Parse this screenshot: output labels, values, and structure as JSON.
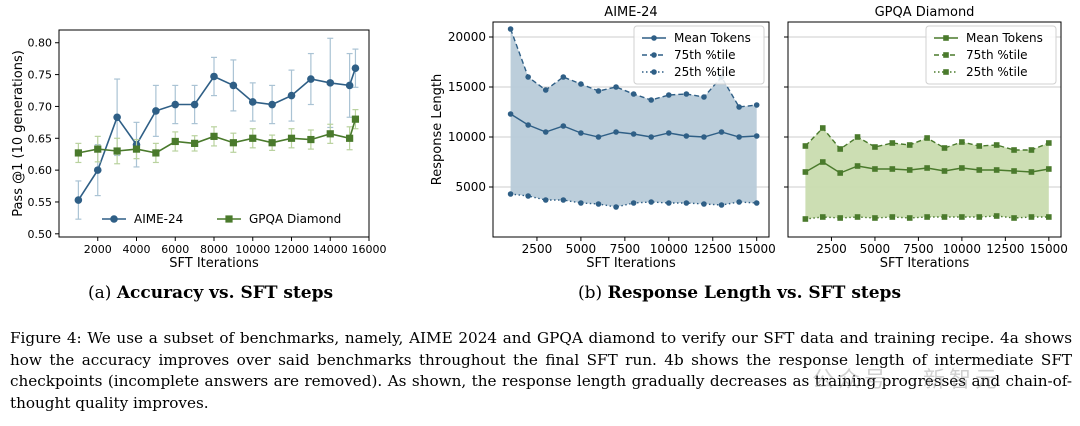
{
  "captions": {
    "a_prefix": "(a) ",
    "a_title": "Accuracy vs. SFT steps",
    "b_prefix": "(b) ",
    "b_title": "Response Length vs. SFT steps"
  },
  "figure_caption": "Figure 4: We use a subset of benchmarks, namely, AIME 2024 and GPQA diamond to verify our SFT data and training recipe. 4a shows how the accuracy improves over said benchmarks throughout the final SFT run. 4b shows the response length of intermediate SFT checkpoints (incomplete answers are removed). As shown, the response length gradually decreases as training progresses and chain-of-thought quality improves.",
  "watermark": "公众号 · 新智元",
  "colors": {
    "aime": "#2f5f86",
    "gpqa": "#4a7a2c",
    "aime_fill": "#b8cbd9",
    "gpqa_fill": "#c9dcaf",
    "errbar_aime": "#aac3d4",
    "errbar_gpqa": "#b9d29e"
  },
  "chart_data": [
    {
      "type": "line",
      "title": "",
      "xlabel": "SFT Iterations",
      "ylabel": "Pass @1 (10 generations)",
      "xlim": [
        0,
        16000
      ],
      "ylim": [
        0.495,
        0.82
      ],
      "xticks": [
        2000,
        4000,
        6000,
        8000,
        10000,
        12000,
        14000,
        16000
      ],
      "yticks": [
        0.5,
        0.55,
        0.6,
        0.65,
        0.7,
        0.75,
        0.8
      ],
      "ytick_labels": [
        "0.50",
        "0.55",
        "0.60",
        "0.65",
        "0.70",
        "0.75",
        "0.80"
      ],
      "grid": false,
      "legend": "bottom-right",
      "x": [
        1000,
        2000,
        3000,
        4000,
        5000,
        6000,
        7000,
        8000,
        9000,
        10000,
        11000,
        12000,
        13000,
        14000,
        15000,
        15300
      ],
      "series": [
        {
          "name": "AIME-24",
          "marker": "circle",
          "values": [
            0.553,
            0.6,
            0.683,
            0.64,
            0.693,
            0.703,
            0.703,
            0.747,
            0.733,
            0.707,
            0.703,
            0.717,
            0.743,
            0.737,
            0.733,
            0.76
          ],
          "err": [
            0.03,
            0.04,
            0.06,
            0.035,
            0.04,
            0.03,
            0.03,
            0.03,
            0.04,
            0.03,
            0.03,
            0.04,
            0.04,
            0.07,
            0.05,
            0.03
          ]
        },
        {
          "name": "GPQA Diamond",
          "marker": "square",
          "values": [
            0.627,
            0.633,
            0.63,
            0.633,
            0.627,
            0.645,
            0.642,
            0.653,
            0.643,
            0.65,
            0.643,
            0.65,
            0.648,
            0.657,
            0.65,
            0.68
          ],
          "err": [
            0.015,
            0.02,
            0.02,
            0.015,
            0.015,
            0.015,
            0.012,
            0.015,
            0.015,
            0.015,
            0.012,
            0.015,
            0.015,
            0.015,
            0.018,
            0.015
          ]
        }
      ]
    },
    {
      "type": "area",
      "title": "AIME-24",
      "xlabel": "SFT Iterations",
      "ylabel": "Response Length",
      "xlim": [
        0,
        15700
      ],
      "ylim": [
        0,
        21500
      ],
      "xticks": [
        2500,
        5000,
        7500,
        10000,
        12500,
        15000
      ],
      "yticks": [
        5000,
        10000,
        15000,
        20000
      ],
      "grid": true,
      "legend": "top-right",
      "x": [
        1000,
        2000,
        3000,
        4000,
        5000,
        6000,
        7000,
        8000,
        9000,
        10000,
        11000,
        12000,
        13000,
        14000,
        15000
      ],
      "series": [
        {
          "name": "Mean Tokens",
          "style": "solid",
          "values": [
            12300,
            11200,
            10500,
            11100,
            10400,
            10000,
            10500,
            10300,
            10000,
            10400,
            10100,
            10000,
            10500,
            10000,
            10100
          ]
        },
        {
          "name": "75th %tile",
          "style": "dashed",
          "values": [
            20800,
            16000,
            14700,
            16000,
            15300,
            14600,
            15000,
            14300,
            13700,
            14200,
            14300,
            14000,
            16000,
            13000,
            13200
          ]
        },
        {
          "name": "25th %tile",
          "style": "dotted",
          "values": [
            4300,
            4100,
            3700,
            3700,
            3400,
            3300,
            3000,
            3400,
            3500,
            3400,
            3400,
            3300,
            3200,
            3500,
            3400
          ]
        }
      ]
    },
    {
      "type": "area",
      "title": "GPQA Diamond",
      "xlabel": "SFT Iterations",
      "ylabel": "",
      "xlim": [
        0,
        15700
      ],
      "ylim": [
        0,
        21500
      ],
      "xticks": [
        2500,
        5000,
        7500,
        10000,
        12500,
        15000
      ],
      "yticks": [
        5000,
        10000,
        15000,
        20000
      ],
      "grid": true,
      "legend": "top-right",
      "x": [
        1000,
        2000,
        3000,
        4000,
        5000,
        6000,
        7000,
        8000,
        9000,
        10000,
        11000,
        12000,
        13000,
        14000,
        15000
      ],
      "series": [
        {
          "name": "Mean Tokens",
          "style": "solid",
          "values": [
            6500,
            7500,
            6400,
            7100,
            6800,
            6800,
            6700,
            6900,
            6600,
            6900,
            6700,
            6700,
            6600,
            6500,
            6800
          ]
        },
        {
          "name": "75th %tile",
          "style": "dashed",
          "values": [
            9100,
            10900,
            8800,
            10000,
            9000,
            9400,
            9200,
            9900,
            8900,
            9500,
            9100,
            9200,
            8700,
            8700,
            9400
          ]
        },
        {
          "name": "25th %tile",
          "style": "dotted",
          "values": [
            1800,
            2000,
            1900,
            2000,
            1900,
            2000,
            1900,
            2000,
            2000,
            2000,
            2000,
            2100,
            1900,
            2000,
            2000
          ]
        }
      ]
    }
  ]
}
